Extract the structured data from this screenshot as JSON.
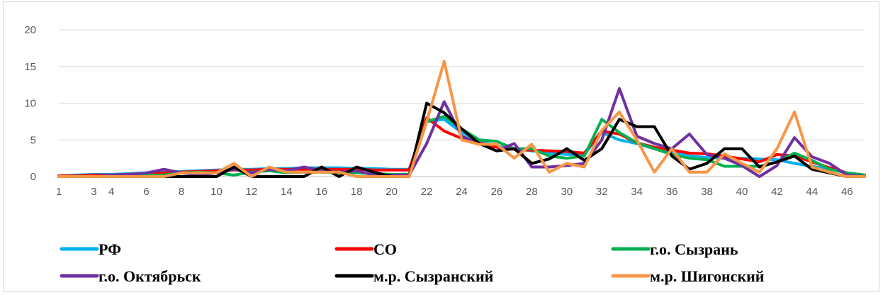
{
  "chart_data": {
    "type": "line",
    "ylim": [
      0,
      20
    ],
    "yticks": [
      0,
      5,
      10,
      15,
      20
    ],
    "x": [
      1,
      2,
      3,
      4,
      5,
      6,
      7,
      8,
      9,
      10,
      11,
      12,
      13,
      14,
      15,
      16,
      17,
      18,
      19,
      20,
      21,
      22,
      23,
      24,
      25,
      26,
      27,
      28,
      29,
      30,
      31,
      32,
      33,
      34,
      35,
      36,
      37,
      38,
      39,
      40,
      41,
      42,
      43,
      44,
      45,
      46,
      47
    ],
    "xtick_labels": [
      "1",
      "3",
      "4",
      "6",
      "8",
      "10",
      "12",
      "14",
      "16",
      "18",
      "20",
      "22",
      "24",
      "26",
      "28",
      "30",
      "32",
      "34",
      "36",
      "38",
      "40",
      "42",
      "44",
      "46"
    ],
    "xtick_positions": [
      1,
      3,
      4,
      6,
      8,
      10,
      12,
      14,
      16,
      18,
      20,
      22,
      24,
      26,
      28,
      30,
      32,
      34,
      36,
      38,
      40,
      42,
      44,
      46
    ],
    "grid": true,
    "legend_position": "bottom",
    "series": [
      {
        "name": "РФ",
        "color": "#00b0f0",
        "values": [
          0.1,
          0.2,
          0.3,
          0.3,
          0.4,
          0.5,
          0.6,
          0.7,
          0.8,
          0.9,
          1.0,
          1.0,
          1.1,
          1.1,
          1.2,
          1.2,
          1.2,
          1.1,
          1.1,
          1.0,
          1.0,
          7.5,
          7.8,
          6.0,
          4.8,
          4.2,
          3.8,
          3.5,
          3.2,
          3.0,
          3.0,
          6.0,
          5.0,
          4.5,
          3.8,
          3.3,
          2.8,
          2.6,
          2.5,
          2.5,
          2.4,
          2.3,
          1.8,
          1.4,
          1.0,
          0.5,
          0.2
        ]
      },
      {
        "name": "СО",
        "color": "#ff0000",
        "values": [
          0.1,
          0.1,
          0.2,
          0.2,
          0.3,
          0.4,
          0.5,
          0.6,
          0.7,
          0.8,
          0.9,
          0.9,
          1.0,
          1.0,
          1.0,
          1.0,
          1.0,
          1.0,
          0.9,
          0.9,
          0.9,
          8.0,
          6.2,
          5.2,
          4.6,
          4.0,
          3.7,
          3.6,
          3.5,
          3.4,
          3.2,
          6.2,
          5.8,
          4.6,
          4.0,
          3.6,
          3.2,
          3.1,
          2.8,
          2.4,
          2.0,
          3.0,
          2.8,
          2.0,
          1.2,
          0.5,
          0.2
        ]
      },
      {
        "name": "г.о. Сызрань",
        "color": "#00b050",
        "values": [
          0,
          0,
          0,
          0,
          0.1,
          0.2,
          0.2,
          0.5,
          0.6,
          0.5,
          0.2,
          0.6,
          0.8,
          0.5,
          0.6,
          0.6,
          0.5,
          0.5,
          0.4,
          0.3,
          0.3,
          7.5,
          8.2,
          6.5,
          5.0,
          4.8,
          3.8,
          3.8,
          2.8,
          2.5,
          2.8,
          7.8,
          6.0,
          4.6,
          3.8,
          3.0,
          2.5,
          2.3,
          1.4,
          1.4,
          1.4,
          2.0,
          3.2,
          2.2,
          1.0,
          0.5,
          0.2
        ]
      },
      {
        "name": "г.о. Октябрьск",
        "color": "#7030a0",
        "values": [
          0,
          0,
          0,
          0.2,
          0.3,
          0.5,
          1.0,
          0.5,
          0.2,
          0.5,
          1.0,
          0.5,
          1.0,
          0.8,
          1.3,
          0.8,
          0.6,
          0.8,
          0.2,
          0.2,
          0.2,
          4.5,
          10.2,
          5.5,
          4.5,
          3.5,
          4.5,
          1.3,
          1.3,
          1.5,
          1.8,
          5.0,
          12.0,
          5.5,
          4.5,
          3.8,
          5.8,
          3.0,
          2.5,
          1.5,
          0,
          1.5,
          5.3,
          2.7,
          1.8,
          0.2,
          0
        ]
      },
      {
        "name": "м.р. Сызранский",
        "color": "#000000",
        "values": [
          0,
          0,
          0,
          0,
          0,
          0,
          0,
          0,
          0,
          0,
          1.3,
          0,
          0,
          0,
          0,
          1.3,
          0,
          1.3,
          0.6,
          0,
          0,
          10.0,
          8.7,
          6.5,
          4.5,
          3.5,
          3.8,
          1.8,
          2.4,
          3.8,
          2.2,
          3.8,
          7.8,
          6.8,
          6.8,
          2.8,
          1.0,
          1.8,
          3.8,
          3.8,
          1.3,
          2.0,
          2.8,
          1.0,
          0.5,
          0,
          0
        ]
      },
      {
        "name": "м.р. Шигонский",
        "color": "#f79646",
        "values": [
          0,
          0,
          0,
          0,
          0,
          0,
          0,
          0.5,
          0.5,
          0.5,
          1.8,
          0,
          1.3,
          0.6,
          0.6,
          0.6,
          0.6,
          0,
          0,
          0,
          0,
          7.5,
          15.7,
          5.0,
          4.4,
          4.4,
          2.5,
          4.4,
          0.6,
          1.8,
          1.3,
          6.3,
          8.8,
          5.0,
          0.6,
          3.8,
          0.6,
          0.6,
          3.1,
          1.8,
          0.6,
          3.8,
          8.8,
          1.3,
          0.6,
          0,
          0
        ]
      }
    ]
  }
}
